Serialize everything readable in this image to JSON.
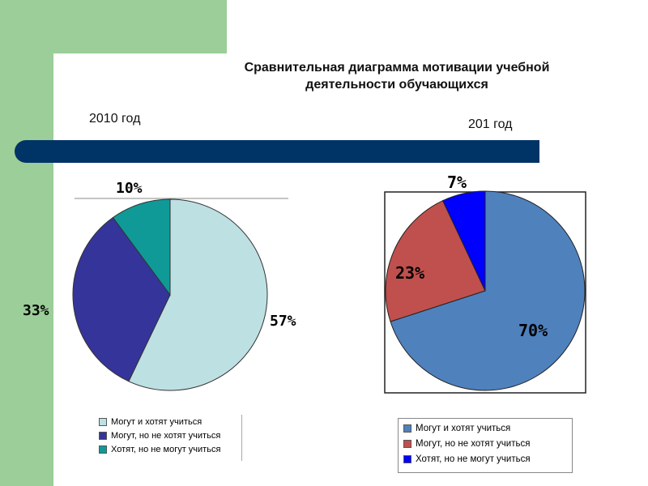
{
  "title_line1": "Сравнительная диаграмма мотивации учебной",
  "title_line2": "деятельности обучающихся",
  "chart_data": [
    {
      "type": "pie",
      "title": "2010  год",
      "categories": [
        "Могут и хотят учиться",
        "Могут, но не хотят учиться",
        "Хотят, но не могут учиться"
      ],
      "values": [
        57,
        33,
        10
      ],
      "labels": [
        "57%",
        "33%",
        "10%"
      ],
      "colors": [
        "#bde0e3",
        "#35349a",
        "#0f9a98"
      ],
      "legend": "bottom"
    },
    {
      "type": "pie",
      "title": "201 год",
      "categories": [
        "Могут и хотят учиться",
        "Могут, но не хотят учиться",
        "Хотят, но не могут учиться"
      ],
      "values": [
        70,
        23,
        7
      ],
      "labels": [
        "70%",
        "23%",
        "7%"
      ],
      "colors": [
        "#4f81bd",
        "#c0504d",
        "#0000ff"
      ],
      "legend": "bottom"
    }
  ]
}
